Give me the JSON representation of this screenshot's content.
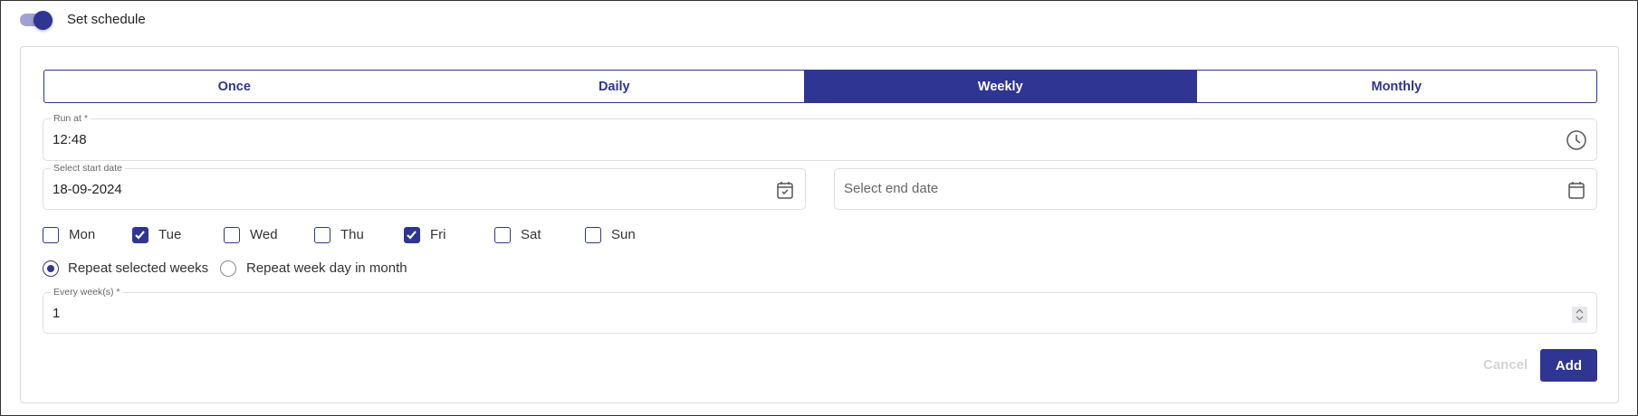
{
  "schedule_toggle": {
    "label": "Set schedule",
    "on": true
  },
  "colors": {
    "accent": "#2e3592",
    "toggle_track": "#9fa1d0"
  },
  "tabs": [
    {
      "label": "Once",
      "active": false
    },
    {
      "label": "Daily",
      "active": false
    },
    {
      "label": "Weekly",
      "active": true
    },
    {
      "label": "Monthly",
      "active": false
    }
  ],
  "run_at": {
    "label": "Run at *",
    "value": "12:48",
    "icon": "clock-icon"
  },
  "start_date": {
    "label": "Select start date",
    "value": "18-09-2024",
    "icon": "calendar-check-icon"
  },
  "end_date": {
    "placeholder": "Select end date",
    "icon": "calendar-icon"
  },
  "weekdays": [
    {
      "label": "Mon",
      "checked": false
    },
    {
      "label": "Tue",
      "checked": true
    },
    {
      "label": "Wed",
      "checked": false
    },
    {
      "label": "Thu",
      "checked": false
    },
    {
      "label": "Fri",
      "checked": true
    },
    {
      "label": "Sat",
      "checked": false
    },
    {
      "label": "Sun",
      "checked": false
    }
  ],
  "repeat_options": [
    {
      "label": "Repeat selected weeks",
      "selected": true
    },
    {
      "label": "Repeat week day in month",
      "selected": false
    }
  ],
  "every_weeks": {
    "label": "Every week(s) *",
    "value": "1"
  },
  "actions": {
    "cancel": "Cancel",
    "add": "Add"
  }
}
